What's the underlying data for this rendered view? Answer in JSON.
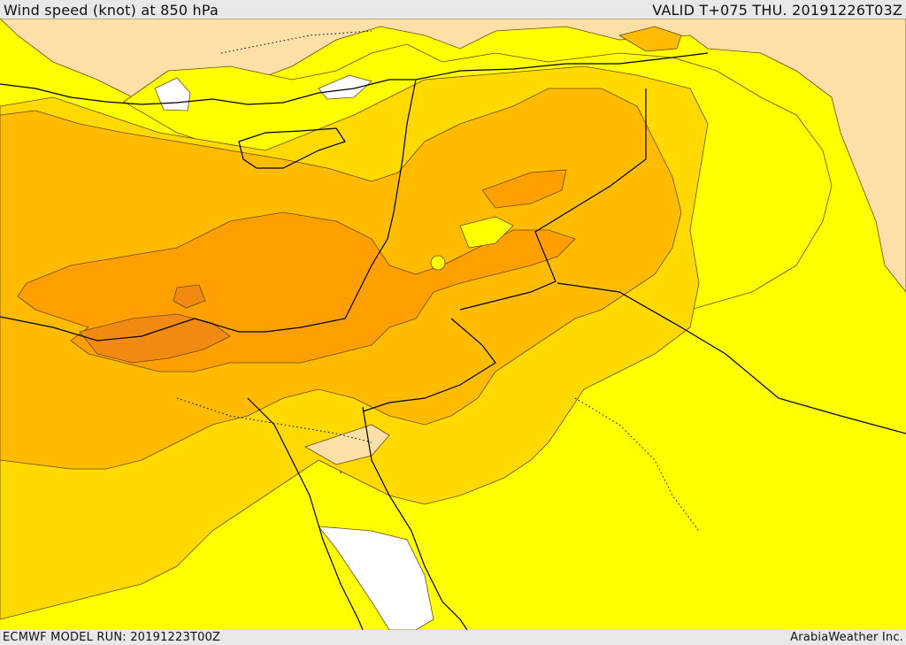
{
  "header": {
    "title": "Wind speed (knot) at 850 hPa",
    "valid_time": "VALID T+075 THU. 20191226T03Z"
  },
  "footer": {
    "model_run": "ECMWF MODEL RUN: 20191223T00Z",
    "credit": "ArabiaWeather Inc."
  },
  "map": {
    "palette": {
      "calm_white": "#ffffff",
      "light_peach": "#fde0a8",
      "yellow": "#ffff00",
      "gold": "#ffd900",
      "amber": "#ffbb00",
      "orange": "#ff9f00",
      "dark_orange": "#f08a10",
      "border_line": "#000000",
      "contour_line": "#6b4a12"
    }
  }
}
